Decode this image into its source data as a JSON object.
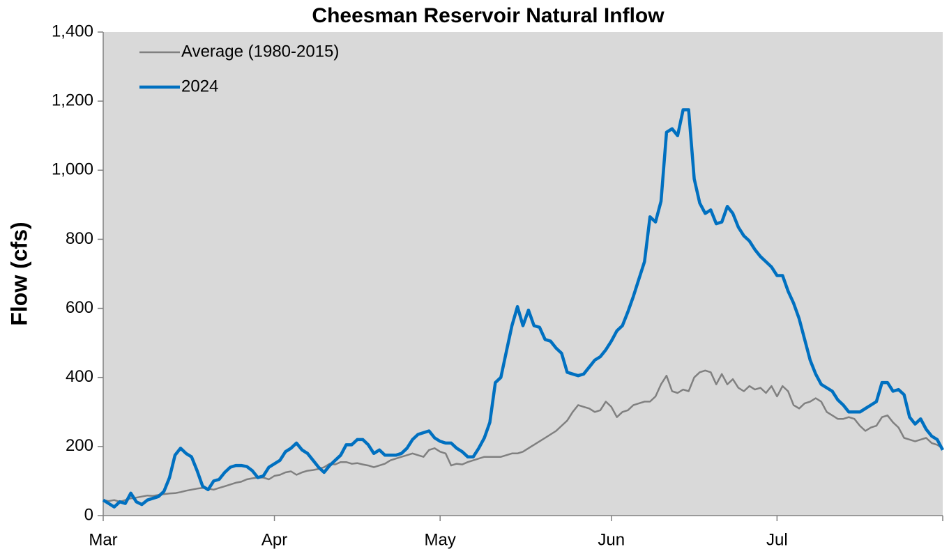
{
  "chart_data": {
    "type": "line",
    "title": "Cheesman Reservoir Natural Inflow",
    "y_label": "Flow (cfs)",
    "categories": [
      "Mar",
      null,
      null,
      null,
      null,
      null,
      null,
      null,
      null,
      null,
      null,
      null,
      null,
      null,
      null,
      null,
      null,
      null,
      null,
      null,
      null,
      null,
      null,
      null,
      null,
      null,
      null,
      null,
      null,
      null,
      null,
      "Apr",
      null,
      null,
      null,
      null,
      null,
      null,
      null,
      null,
      null,
      null,
      null,
      null,
      null,
      null,
      null,
      null,
      null,
      null,
      null,
      null,
      null,
      null,
      null,
      null,
      null,
      null,
      null,
      null,
      null,
      "May",
      null,
      null,
      null,
      null,
      null,
      null,
      null,
      null,
      null,
      null,
      null,
      null,
      null,
      null,
      null,
      null,
      null,
      null,
      null,
      null,
      null,
      null,
      null,
      null,
      null,
      null,
      null,
      null,
      null,
      null,
      "Jun",
      null,
      null,
      null,
      null,
      null,
      null,
      null,
      null,
      null,
      null,
      null,
      null,
      null,
      null,
      null,
      null,
      null,
      null,
      null,
      null,
      null,
      null,
      null,
      null,
      null,
      null,
      null,
      null,
      null,
      "Jul",
      null,
      null,
      null,
      null,
      null,
      null,
      null,
      null,
      null,
      null,
      null,
      null,
      null,
      null,
      null,
      null,
      null,
      null,
      null,
      null,
      null,
      null,
      null,
      null,
      null,
      null,
      null,
      null,
      null,
      null
    ],
    "series": [
      {
        "name": "Average (1980-2015)",
        "color": "#808080",
        "width": 2.5,
        "values": [
          45,
          42,
          45,
          40,
          45,
          50,
          52,
          55,
          58,
          57,
          60,
          62,
          64,
          65,
          68,
          72,
          75,
          78,
          80,
          78,
          75,
          80,
          85,
          90,
          95,
          98,
          105,
          108,
          110,
          110,
          105,
          115,
          118,
          125,
          128,
          118,
          125,
          130,
          132,
          135,
          140,
          150,
          148,
          155,
          155,
          150,
          152,
          148,
          145,
          140,
          145,
          150,
          160,
          165,
          170,
          175,
          180,
          175,
          170,
          190,
          195,
          185,
          180,
          145,
          150,
          148,
          155,
          160,
          165,
          170,
          170,
          170,
          170,
          175,
          180,
          180,
          185,
          195,
          205,
          215,
          225,
          235,
          245,
          260,
          275,
          300,
          320,
          315,
          310,
          300,
          305,
          330,
          315,
          285,
          300,
          305,
          320,
          325,
          330,
          330,
          345,
          380,
          405,
          360,
          355,
          365,
          360,
          400,
          415,
          420,
          415,
          380,
          410,
          380,
          395,
          370,
          360,
          375,
          365,
          370,
          355,
          375,
          345,
          375,
          360,
          320,
          310,
          325,
          330,
          340,
          330,
          300,
          290,
          280,
          280,
          285,
          280,
          260,
          245,
          255,
          260,
          285,
          290,
          270,
          255,
          225,
          220,
          215,
          220,
          225,
          210,
          205,
          195
        ]
      },
      {
        "name": "2024",
        "color": "#0070c0",
        "width": 4.5,
        "values": [
          45,
          35,
          25,
          40,
          35,
          65,
          40,
          32,
          45,
          50,
          55,
          70,
          110,
          175,
          195,
          180,
          170,
          130,
          85,
          75,
          100,
          105,
          125,
          140,
          145,
          145,
          142,
          130,
          110,
          115,
          140,
          150,
          160,
          185,
          195,
          210,
          190,
          180,
          160,
          140,
          125,
          145,
          160,
          175,
          205,
          205,
          220,
          220,
          205,
          180,
          190,
          175,
          175,
          175,
          180,
          195,
          220,
          235,
          240,
          245,
          225,
          215,
          210,
          210,
          195,
          185,
          170,
          170,
          195,
          225,
          270,
          385,
          400,
          475,
          550,
          605,
          550,
          595,
          550,
          545,
          510,
          505,
          485,
          470,
          415,
          410,
          405,
          410,
          430,
          450,
          460,
          480,
          505,
          535,
          550,
          590,
          635,
          685,
          735,
          865,
          850,
          910,
          1110,
          1120,
          1100,
          1175,
          1175,
          975,
          905,
          875,
          885,
          845,
          850,
          895,
          875,
          835,
          810,
          795,
          770,
          750,
          735,
          720,
          695,
          695,
          650,
          615,
          570,
          510,
          450,
          410,
          380,
          370,
          360,
          335,
          320,
          300,
          300,
          300,
          310,
          320,
          330,
          385,
          385,
          360,
          365,
          350,
          285,
          265,
          280,
          250,
          230,
          220,
          190
        ]
      }
    ],
    "ylim": [
      0,
      1400
    ],
    "yticks": [
      0,
      200,
      400,
      600,
      800,
      {
        "value": 1000,
        "label": "1,000"
      },
      {
        "value": 1200,
        "label": "1,200"
      },
      {
        "value": 1400,
        "label": "1,400"
      }
    ],
    "legend": "upper left",
    "plot_background": "#d9d9d9"
  }
}
